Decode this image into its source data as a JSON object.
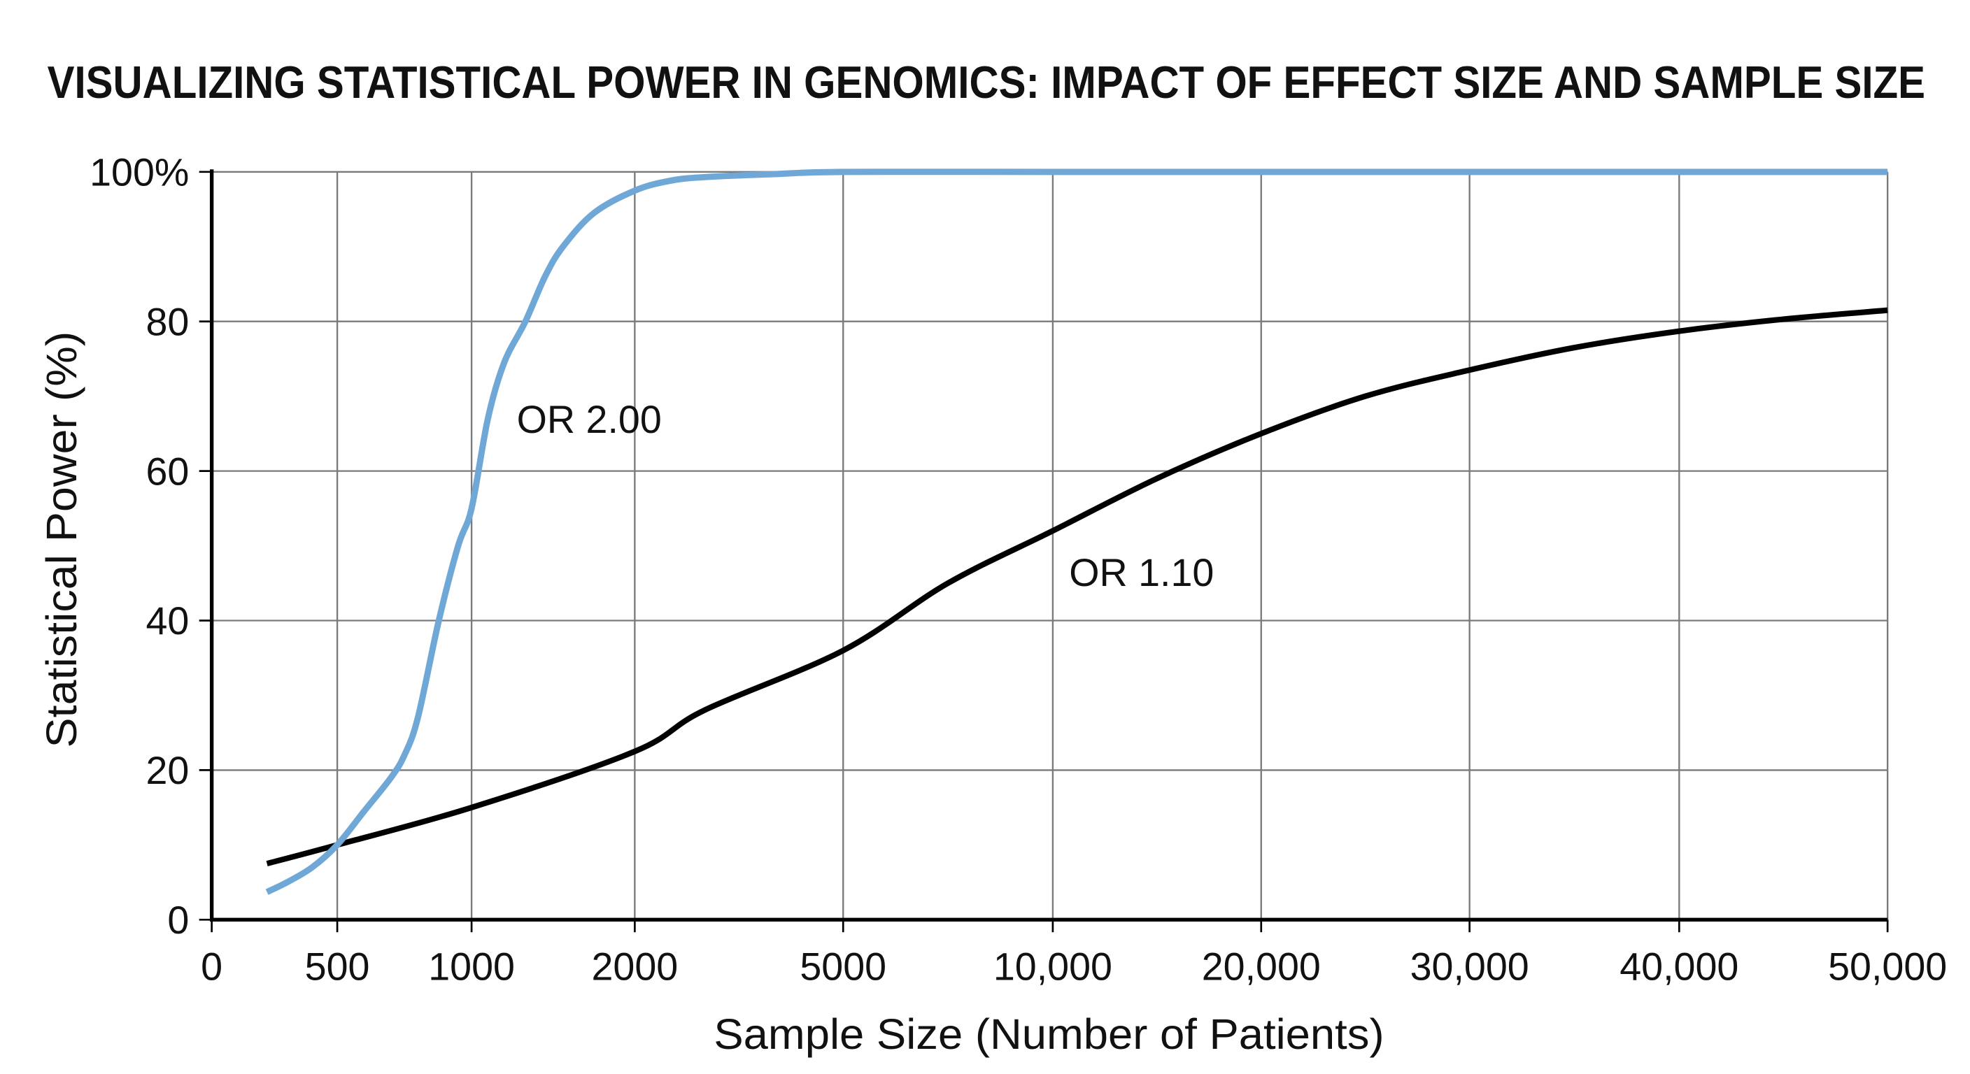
{
  "chart_data": {
    "type": "line",
    "title": "VISUALIZING STATISTICAL POWER IN GENOMICS: IMPACT OF EFFECT SIZE AND SAMPLE SIZE",
    "xlabel": "Sample Size (Number of Patients)",
    "ylabel": "Statistical Power (%)",
    "x_ticks": [
      0,
      500,
      1000,
      2000,
      5000,
      10000,
      20000,
      30000,
      40000,
      50000
    ],
    "x_tick_labels": [
      "0",
      "500",
      "1000",
      "2000",
      "5000",
      "10,000",
      "20,000",
      "30,000",
      "40,000",
      "50,000"
    ],
    "x_scale": "non-uniform (tick-spaced)",
    "y_ticks": [
      0,
      20,
      40,
      60,
      80,
      100
    ],
    "y_tick_labels": [
      "0",
      "20",
      "40",
      "60",
      "80",
      "100%"
    ],
    "ylim": [
      0,
      100
    ],
    "xlim": [
      0,
      50000
    ],
    "grid": true,
    "legend": "none (inline labels)",
    "series": [
      {
        "name": "OR 2.00",
        "color": "#6fa8d6",
        "x": [
          220,
          300,
          400,
          500,
          600,
          700,
          750,
          800,
          878,
          950,
          1000,
          1100,
          1200,
          1330,
          1450,
          1560,
          1750,
          2000,
          2500,
          3000,
          4000,
          5000,
          10000,
          20000,
          30000,
          40000,
          50000
        ],
        "y": [
          3.7,
          5,
          7,
          10,
          14.5,
          19,
          22,
          27,
          40,
          50,
          55,
          67,
          74.5,
          80,
          86,
          90,
          94.5,
          97.5,
          98.8,
          99.3,
          99.7,
          100,
          100,
          100,
          100,
          100,
          100
        ]
      },
      {
        "name": "OR 1.10",
        "color": "#000000",
        "x": [
          220,
          500,
          1000,
          2000,
          3000,
          5000,
          7500,
          10000,
          15000,
          20000,
          25000,
          30000,
          35000,
          40000,
          45000,
          50000
        ],
        "y": [
          7.5,
          10,
          15,
          22.5,
          28,
          36,
          45,
          52,
          59,
          65,
          70,
          73.5,
          76.5,
          78.7,
          80.3,
          81.5
        ]
      }
    ]
  }
}
